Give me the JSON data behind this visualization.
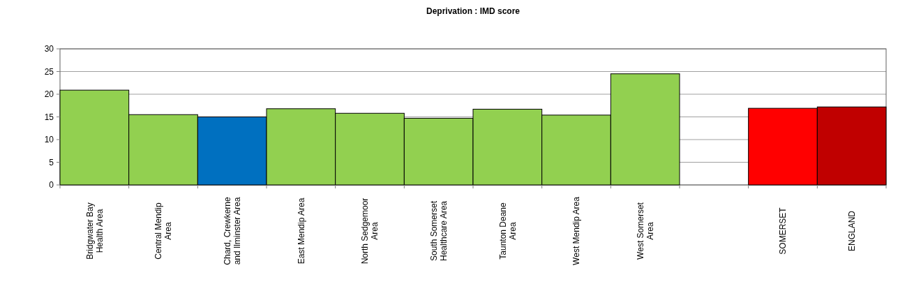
{
  "chart_data": {
    "type": "bar",
    "title": "Deprivation : IMD score",
    "categories": [
      "Bridgwater Bay\nHealth Area",
      "Central Mendip\nArea",
      "Chard, Crewkerne\nand Ilminster Area",
      "East Mendip Area",
      "North Sedgemoor\nArea",
      "South Somerset\nHealthcare Area",
      "Taunton Deane\nArea",
      "West Mendip Area",
      "West Somerset\nArea",
      null,
      "SOMERSET",
      "ENGLAND"
    ],
    "values": [
      20.9,
      15.5,
      15.0,
      16.8,
      15.8,
      14.7,
      16.7,
      15.4,
      24.5,
      null,
      16.9,
      17.2
    ],
    "colors": [
      "#92d050",
      "#92d050",
      "#0070c0",
      "#92d050",
      "#92d050",
      "#92d050",
      "#92d050",
      "#92d050",
      "#92d050",
      null,
      "#ff0000",
      "#c00000"
    ],
    "ylim": [
      0,
      30
    ],
    "yticks": [
      0,
      5,
      10,
      15,
      20,
      25,
      30
    ],
    "grid": "y"
  }
}
